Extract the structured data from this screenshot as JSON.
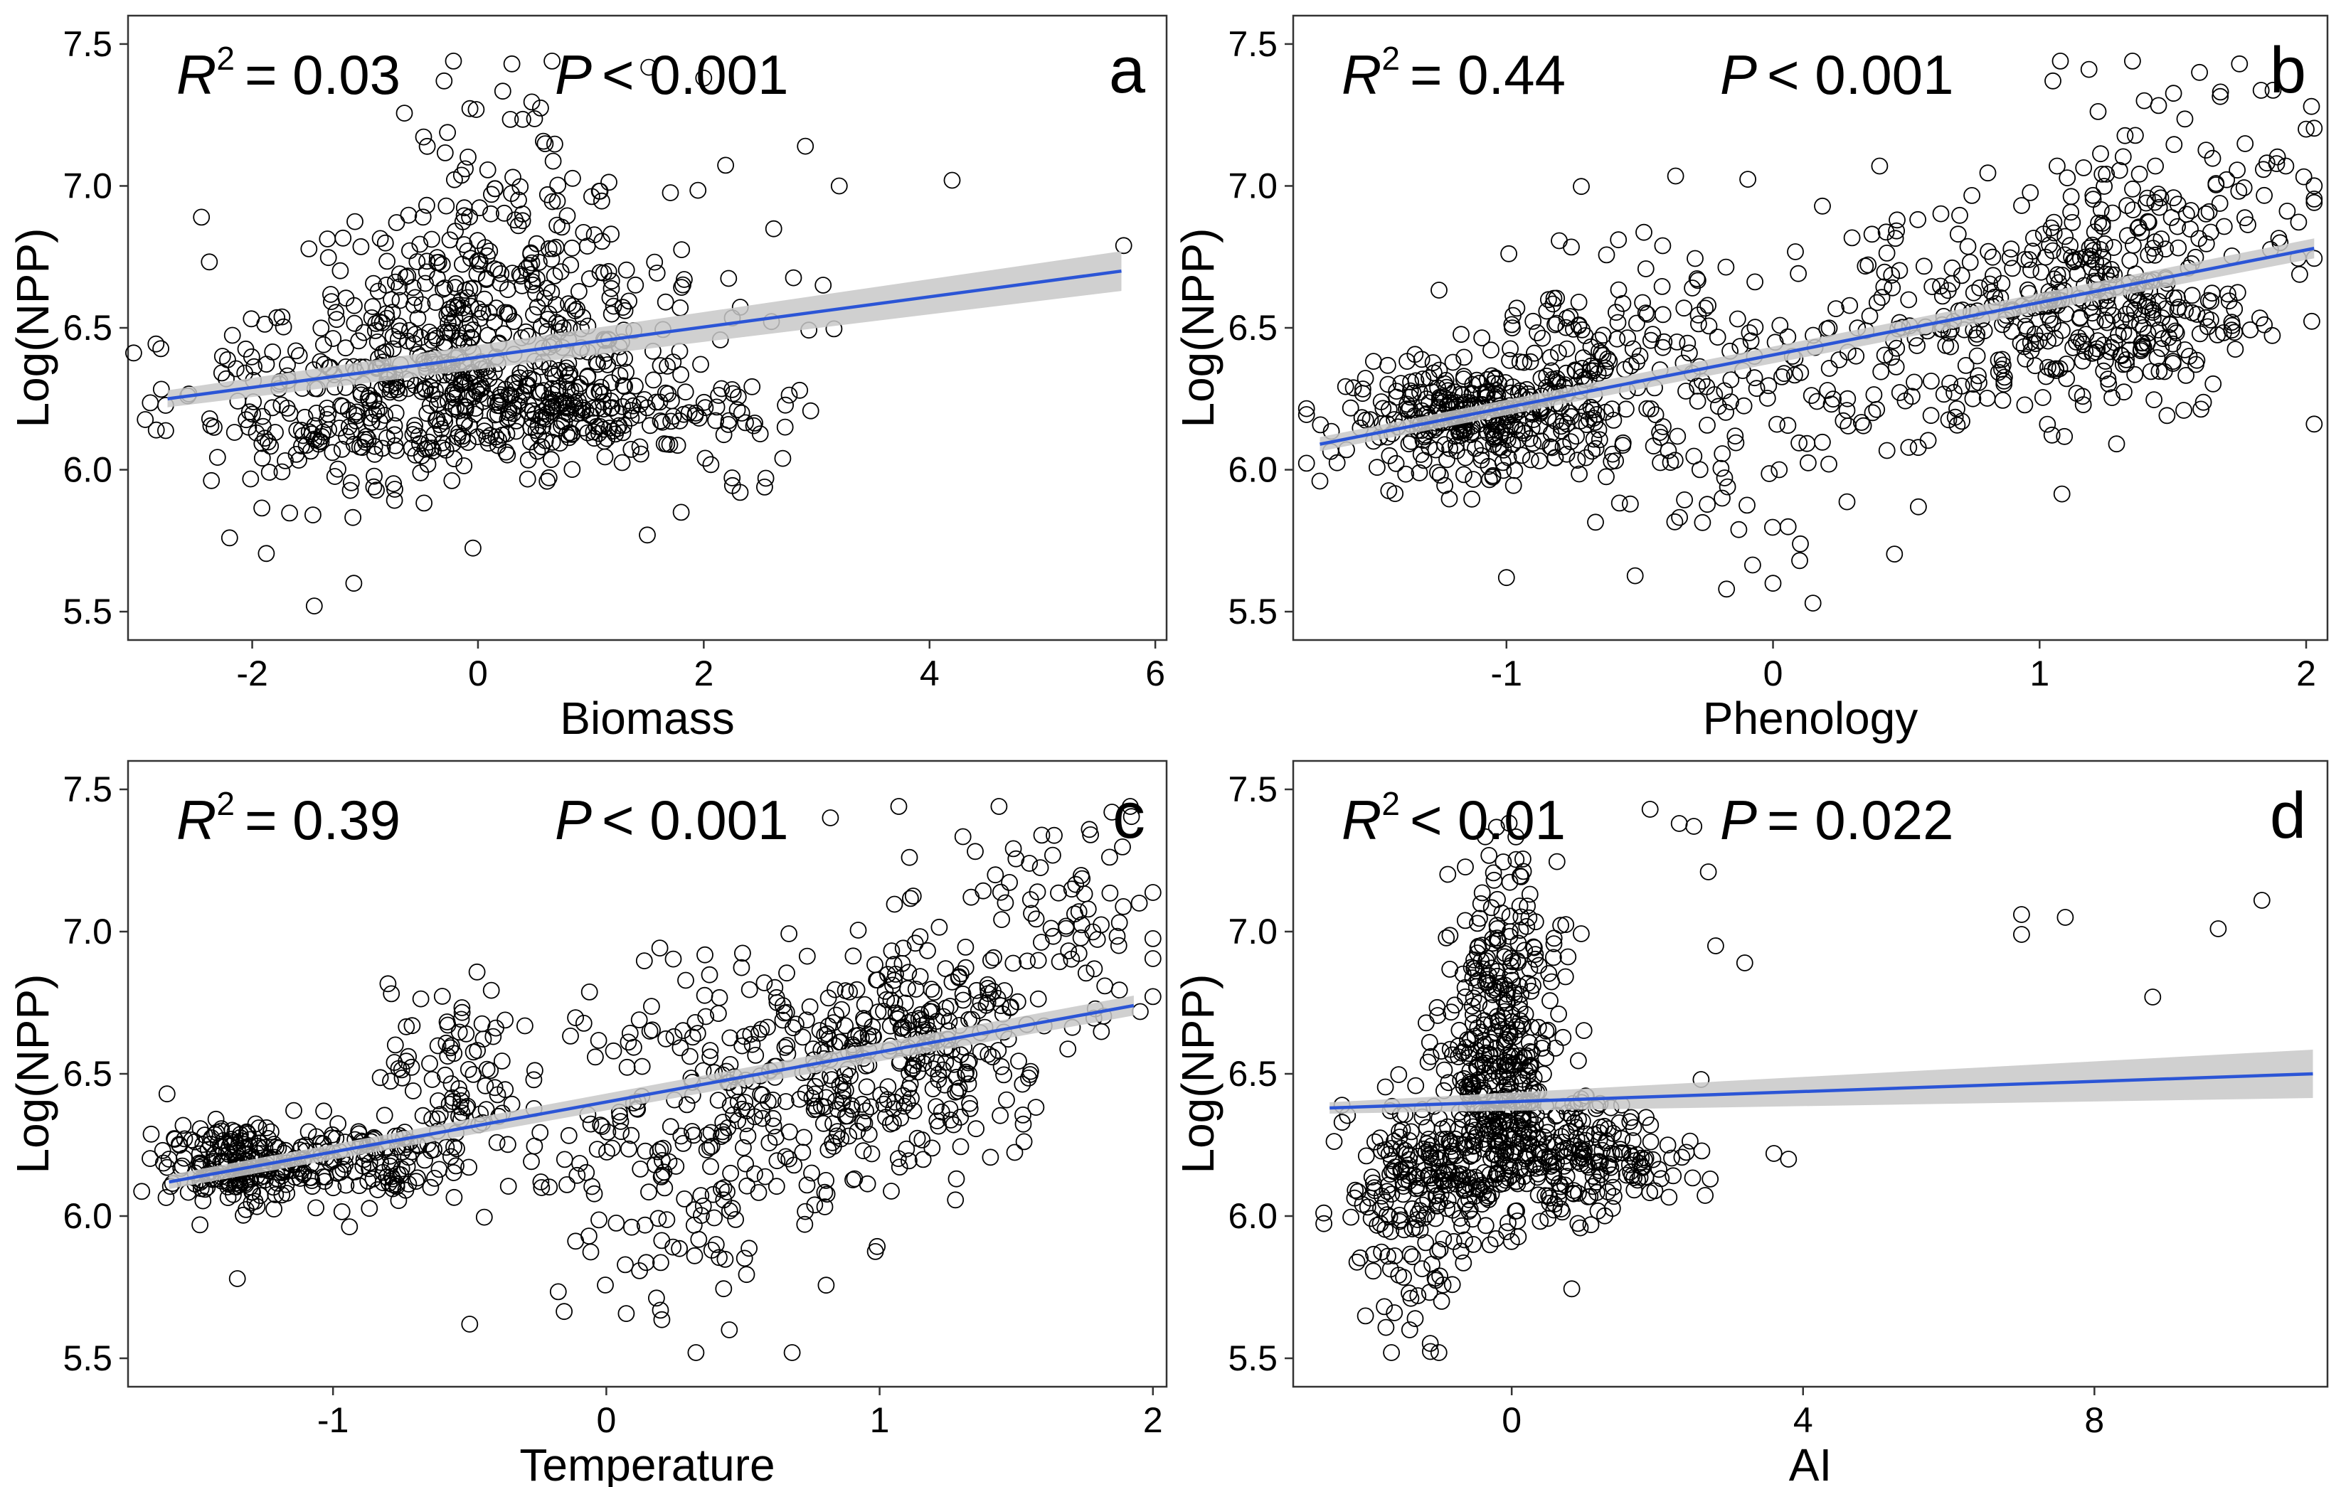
{
  "figure": {
    "panels": [
      {
        "letter": "a",
        "r2_text": "= 0.03",
        "p_text": "< 0.001",
        "xlabel": "Biomass",
        "ylabel": "Log(NPP)",
        "xticks": [
          -2,
          0,
          2,
          4,
          6
        ],
        "yticks": [
          5.5,
          6.0,
          6.5,
          7.0,
          7.5
        ],
        "xtick_labels": [
          "-2",
          "0",
          "2",
          "4",
          "6"
        ],
        "ytick_labels": [
          "5.5",
          "6.0",
          "6.5",
          "7.0",
          "7.5"
        ]
      },
      {
        "letter": "b",
        "r2_text": "= 0.44",
        "p_text": "< 0.001",
        "xlabel": "Phenology",
        "ylabel": "Log(NPP)",
        "xticks": [
          -1,
          0,
          1,
          2
        ],
        "yticks": [
          5.5,
          6.0,
          6.5,
          7.0,
          7.5
        ],
        "xtick_labels": [
          "-1",
          "0",
          "1",
          "2"
        ],
        "ytick_labels": [
          "5.5",
          "6.0",
          "6.5",
          "7.0",
          "7.5"
        ]
      },
      {
        "letter": "c",
        "r2_text": "= 0.39",
        "p_text": "< 0.001",
        "xlabel": "Temperature",
        "ylabel": "Log(NPP)",
        "xticks": [
          -1,
          0,
          1,
          2
        ],
        "yticks": [
          5.5,
          6.0,
          6.5,
          7.0,
          7.5
        ],
        "xtick_labels": [
          "-1",
          "0",
          "1",
          "2"
        ],
        "ytick_labels": [
          "5.5",
          "6.0",
          "6.5",
          "7.0",
          "7.5"
        ]
      },
      {
        "letter": "d",
        "r2_text": "< 0.01",
        "p_text": "= 0.022",
        "xlabel": "AI",
        "ylabel": "Log(NPP)",
        "xticks": [
          0,
          4,
          8
        ],
        "yticks": [
          5.5,
          6.0,
          6.5,
          7.0,
          7.5
        ],
        "xtick_labels": [
          "0",
          "4",
          "8"
        ],
        "ytick_labels": [
          "5.5",
          "6.0",
          "6.5",
          "7.0",
          "7.5"
        ]
      }
    ]
  },
  "chart_data": [
    {
      "type": "scatter",
      "xlabel": "Biomass",
      "ylabel": "Log(NPP)",
      "xlim": [
        -3.1,
        6.1
      ],
      "ylim": [
        5.4,
        7.6
      ],
      "r_squared": "0.03",
      "p_value": "< 0.001",
      "fit": {
        "x": [
          -2.75,
          5.7
        ],
        "y": [
          6.25,
          6.7
        ]
      },
      "ci_halfwidth": [
        0.03,
        0.07
      ],
      "point_color": "#000000",
      "fit_color": "#2b55d6",
      "ci_color": "#c8c8c8",
      "clusters": [
        {
          "cx": -0.2,
          "cy": 6.25,
          "sx": 0.9,
          "sy": 0.14,
          "n": 260
        },
        {
          "cx": -0.1,
          "cy": 6.55,
          "sx": 0.8,
          "sy": 0.18,
          "n": 230
        },
        {
          "cx": 0.3,
          "cy": 6.85,
          "sx": 0.6,
          "sy": 0.28,
          "n": 90
        },
        {
          "cx": 0.8,
          "cy": 6.2,
          "sx": 0.9,
          "sy": 0.08,
          "n": 160
        },
        {
          "cx": 1.5,
          "cy": 6.4,
          "sx": 0.7,
          "sy": 0.25,
          "n": 60
        },
        {
          "cx": -1.6,
          "cy": 6.15,
          "sx": 0.6,
          "sy": 0.2,
          "n": 90
        }
      ],
      "points": [
        {
          "x": 5.72,
          "y": 6.79
        },
        {
          "x": 4.2,
          "y": 7.02
        },
        {
          "x": 2.9,
          "y": 7.14
        },
        {
          "x": 2.0,
          "y": 7.38
        },
        {
          "x": 0.3,
          "y": 7.43
        },
        {
          "x": -0.3,
          "y": 7.37
        },
        {
          "x": -1.45,
          "y": 5.52
        },
        {
          "x": -1.1,
          "y": 5.6
        },
        {
          "x": 1.5,
          "y": 5.77
        },
        {
          "x": -2.45,
          "y": 6.89
        },
        {
          "x": 3.2,
          "y": 7.0
        },
        {
          "x": 2.55,
          "y": 5.97
        },
        {
          "x": 2.7,
          "y": 6.04
        },
        {
          "x": 2.85,
          "y": 6.28
        },
        {
          "x": 1.8,
          "y": 5.85
        },
        {
          "x": -2.85,
          "y": 6.14
        },
        {
          "x": -2.2,
          "y": 5.76
        }
      ]
    },
    {
      "type": "scatter",
      "xlabel": "Phenology",
      "ylabel": "Log(NPP)",
      "xlim": [
        -1.8,
        2.08
      ],
      "ylim": [
        5.4,
        7.6
      ],
      "r_squared": "0.44",
      "p_value": "< 0.001",
      "fit": {
        "x": [
          -1.7,
          2.03
        ],
        "y": [
          6.09,
          6.78
        ]
      },
      "ci_halfwidth": [
        0.025,
        0.035
      ],
      "point_color": "#000000",
      "fit_color": "#2b55d6",
      "ci_color": "#c8c8c8",
      "clusters": [
        {
          "cx": -1.1,
          "cy": 6.18,
          "sx": 0.25,
          "sy": 0.09,
          "n": 330
        },
        {
          "cx": -0.7,
          "cy": 6.4,
          "sx": 0.25,
          "sy": 0.15,
          "n": 110
        },
        {
          "cx": -0.2,
          "cy": 6.25,
          "sx": 0.35,
          "sy": 0.3,
          "n": 110
        },
        {
          "cx": 0.5,
          "cy": 6.45,
          "sx": 0.35,
          "sy": 0.25,
          "n": 120
        },
        {
          "cx": 1.2,
          "cy": 6.55,
          "sx": 0.3,
          "sy": 0.18,
          "n": 280
        },
        {
          "cx": 1.5,
          "cy": 6.95,
          "sx": 0.3,
          "sy": 0.25,
          "n": 120
        }
      ],
      "points": [
        {
          "x": 1.6,
          "y": 7.4
        },
        {
          "x": 1.75,
          "y": 7.43
        },
        {
          "x": 2.0,
          "y": 7.2
        },
        {
          "x": 2.02,
          "y": 7.28
        },
        {
          "x": 0.15,
          "y": 5.53
        },
        {
          "x": -1.0,
          "y": 5.62
        },
        {
          "x": 0.0,
          "y": 5.6
        },
        {
          "x": 0.1,
          "y": 5.68
        },
        {
          "x": 0.4,
          "y": 7.07
        },
        {
          "x": 1.05,
          "y": 7.37
        },
        {
          "x": -1.7,
          "y": 5.96
        }
      ]
    },
    {
      "type": "scatter",
      "xlabel": "Temperature",
      "ylabel": "Log(NPP)",
      "xlim": [
        -1.75,
        2.05
      ],
      "ylim": [
        5.4,
        7.6
      ],
      "r_squared": "0.39",
      "p_value": "< 0.001",
      "fit": {
        "x": [
          -1.6,
          1.93
        ],
        "y": [
          6.12,
          6.74
        ]
      },
      "ci_halfwidth": [
        0.025,
        0.035
      ],
      "point_color": "#000000",
      "fit_color": "#2b55d6",
      "ci_color": "#c8c8c8",
      "clusters": [
        {
          "cx": -1.35,
          "cy": 6.18,
          "sx": 0.13,
          "sy": 0.07,
          "n": 200
        },
        {
          "cx": -0.9,
          "cy": 6.2,
          "sx": 0.2,
          "sy": 0.08,
          "n": 130
        },
        {
          "cx": -0.55,
          "cy": 6.5,
          "sx": 0.12,
          "sy": 0.15,
          "n": 80
        },
        {
          "cx": 0.3,
          "cy": 6.25,
          "sx": 0.3,
          "sy": 0.3,
          "n": 170
        },
        {
          "cx": 0.8,
          "cy": 6.5,
          "sx": 0.3,
          "sy": 0.2,
          "n": 220
        },
        {
          "cx": 1.2,
          "cy": 6.6,
          "sx": 0.22,
          "sy": 0.2,
          "n": 160
        },
        {
          "cx": 1.65,
          "cy": 7.05,
          "sx": 0.2,
          "sy": 0.22,
          "n": 80
        }
      ],
      "points": [
        {
          "x": 1.07,
          "y": 7.44
        },
        {
          "x": 0.82,
          "y": 7.4
        },
        {
          "x": 1.85,
          "y": 7.42
        },
        {
          "x": -0.5,
          "y": 5.62
        },
        {
          "x": 0.68,
          "y": 5.52
        },
        {
          "x": 0.45,
          "y": 5.6
        },
        {
          "x": 1.95,
          "y": 7.1
        },
        {
          "x": -1.6,
          "y": 6.2
        },
        {
          "x": -1.35,
          "y": 5.78
        }
      ]
    },
    {
      "type": "scatter",
      "xlabel": "AI",
      "ylabel": "Log(NPP)",
      "xlim": [
        -3.0,
        11.2
      ],
      "ylim": [
        5.4,
        7.6
      ],
      "r_squared": "< 0.01",
      "p_value": "= 0.022",
      "fit": {
        "x": [
          -2.5,
          11.0
        ],
        "y": [
          6.38,
          6.5
        ]
      },
      "ci_halfwidth": [
        0.02,
        0.085
      ],
      "point_color": "#000000",
      "fit_color": "#2b55d6",
      "ci_color": "#c8c8c8",
      "clusters": [
        {
          "cx": -0.2,
          "cy": 6.5,
          "sx": 0.4,
          "sy": 0.25,
          "n": 320
        },
        {
          "cx": -1.2,
          "cy": 6.15,
          "sx": 0.5,
          "sy": 0.15,
          "n": 160
        },
        {
          "cx": 0.6,
          "cy": 6.2,
          "sx": 0.6,
          "sy": 0.1,
          "n": 170
        },
        {
          "cx": 0.0,
          "cy": 6.9,
          "sx": 0.4,
          "sy": 0.25,
          "n": 90
        },
        {
          "cx": -1.4,
          "cy": 5.9,
          "sx": 0.4,
          "sy": 0.15,
          "n": 60
        },
        {
          "cx": 1.6,
          "cy": 6.2,
          "sx": 0.5,
          "sy": 0.08,
          "n": 60
        }
      ],
      "points": [
        {
          "x": 7.0,
          "y": 7.06
        },
        {
          "x": 7.0,
          "y": 6.99
        },
        {
          "x": 7.6,
          "y": 7.05
        },
        {
          "x": 8.8,
          "y": 6.77
        },
        {
          "x": 9.7,
          "y": 7.01
        },
        {
          "x": 10.3,
          "y": 7.11
        },
        {
          "x": 2.7,
          "y": 7.21
        },
        {
          "x": 2.5,
          "y": 7.37
        },
        {
          "x": 2.3,
          "y": 7.38
        },
        {
          "x": 3.8,
          "y": 6.2
        },
        {
          "x": 3.6,
          "y": 6.22
        },
        {
          "x": 3.2,
          "y": 6.89
        },
        {
          "x": 2.8,
          "y": 6.95
        },
        {
          "x": -1.0,
          "y": 5.52
        },
        {
          "x": -1.4,
          "y": 5.6
        },
        {
          "x": 2.6,
          "y": 6.48
        },
        {
          "x": 1.9,
          "y": 7.43
        }
      ]
    }
  ]
}
